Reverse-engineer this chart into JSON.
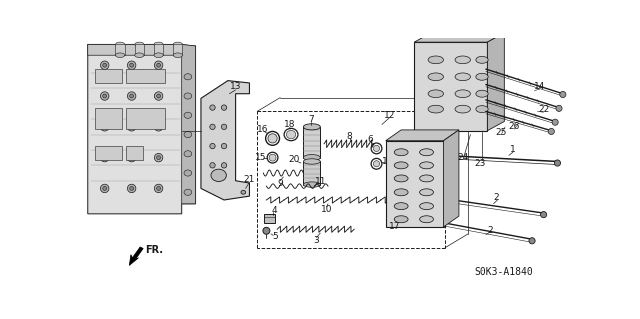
{
  "bg_color": "#ffffff",
  "line_color": "#1a1a1a",
  "diagram_code": "S0K3-A1840",
  "gray_fill": "#d8d8d8",
  "dark_fill": "#555555",
  "mid_gray": "#aaaaaa",
  "light_fill": "#eeeeee"
}
